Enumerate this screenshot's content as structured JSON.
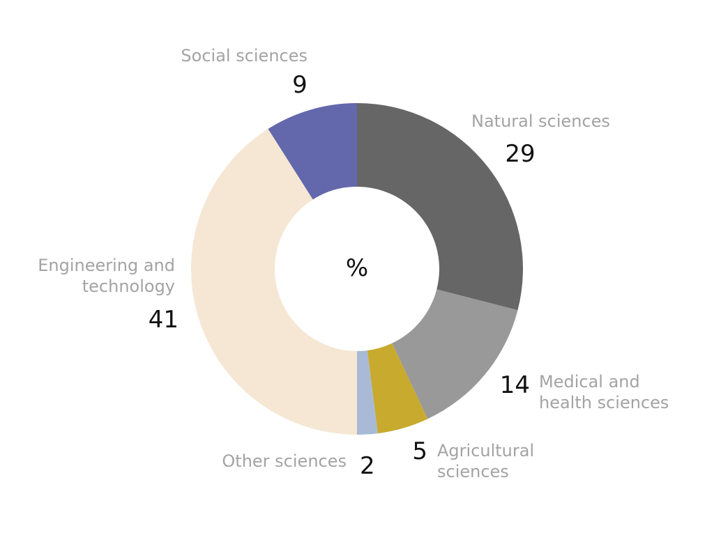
{
  "chart_data": {
    "type": "pie",
    "subtype": "donut",
    "center_text": "%",
    "slices": [
      {
        "label": "Natural sciences",
        "value": 29,
        "value_label": "29",
        "color": "#666666"
      },
      {
        "label": "Medical and health sciences",
        "value": 14,
        "value_label": "14",
        "color": "#999999"
      },
      {
        "label": "Agricultural sciences",
        "value": 5,
        "value_label": "5",
        "color": "#c8aa2e"
      },
      {
        "label": "Other sciences",
        "value": 2,
        "value_label": "2",
        "color": "#a9bad6"
      },
      {
        "label": "Engineering and technology",
        "value": 41,
        "value_label": "41",
        "color": "#f5e7d4"
      },
      {
        "label": "Social sciences",
        "value": 9,
        "value_label": "9",
        "color": "#6367ac"
      }
    ]
  }
}
